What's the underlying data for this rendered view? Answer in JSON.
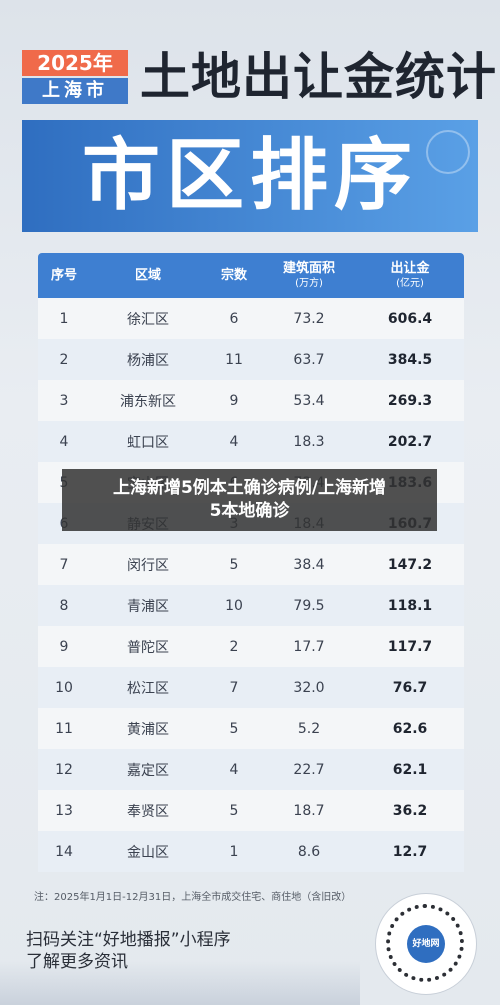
{
  "header": {
    "year": "2025年",
    "city": "上海市",
    "title": "土地出让金统计",
    "banner": "市区排序"
  },
  "table": {
    "columns": {
      "rank": "序号",
      "district": "区域",
      "count": "宗数",
      "area": "建筑面积",
      "area_unit": "(万方)",
      "fee": "出让金",
      "fee_unit": "(亿元)"
    },
    "rows": [
      {
        "rank": "1",
        "district": "徐汇区",
        "count": "6",
        "area": "73.2",
        "fee": "606.4"
      },
      {
        "rank": "2",
        "district": "杨浦区",
        "count": "11",
        "area": "63.7",
        "fee": "384.5"
      },
      {
        "rank": "3",
        "district": "浦东新区",
        "count": "9",
        "area": "53.4",
        "fee": "269.3"
      },
      {
        "rank": "4",
        "district": "虹口区",
        "count": "4",
        "area": "18.3",
        "fee": "202.7"
      },
      {
        "rank": "5",
        "district": "宝山区",
        "count": "6",
        "area": "73.4",
        "fee": "183.6"
      },
      {
        "rank": "6",
        "district": "静安区",
        "count": "3",
        "area": "18.4",
        "fee": "160.7"
      },
      {
        "rank": "7",
        "district": "闵行区",
        "count": "5",
        "area": "38.4",
        "fee": "147.2"
      },
      {
        "rank": "8",
        "district": "青浦区",
        "count": "10",
        "area": "79.5",
        "fee": "118.1"
      },
      {
        "rank": "9",
        "district": "普陀区",
        "count": "2",
        "area": "17.7",
        "fee": "117.7"
      },
      {
        "rank": "10",
        "district": "松江区",
        "count": "7",
        "area": "32.0",
        "fee": "76.7"
      },
      {
        "rank": "11",
        "district": "黄浦区",
        "count": "5",
        "area": "5.2",
        "fee": "62.6"
      },
      {
        "rank": "12",
        "district": "嘉定区",
        "count": "4",
        "area": "22.7",
        "fee": "62.1"
      },
      {
        "rank": "13",
        "district": "奉贤区",
        "count": "5",
        "area": "18.7",
        "fee": "36.2"
      },
      {
        "rank": "14",
        "district": "金山区",
        "count": "1",
        "area": "8.6",
        "fee": "12.7"
      }
    ]
  },
  "overlay": {
    "line1": "上海新增5例本土确诊病例/上海新增",
    "line2": "5本地确诊"
  },
  "footer": {
    "note": "注：2025年1月1日-12月31日，上海全市成交住宅、商住地（含旧改）",
    "cta_line1": "扫码关注“好地播报”小程序",
    "cta_line2": "了解更多资讯",
    "qr_label": "好地网"
  }
}
